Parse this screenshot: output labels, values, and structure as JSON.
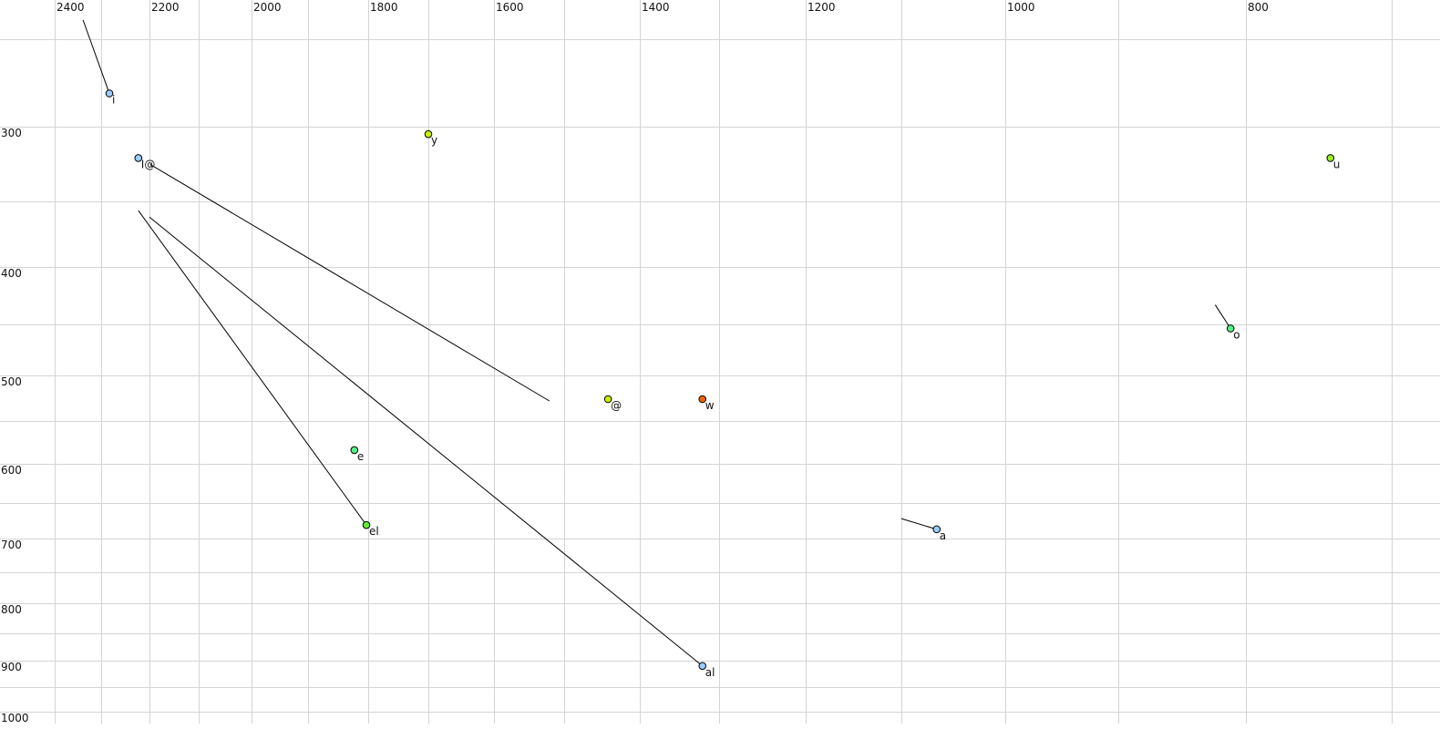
{
  "chart_data": {
    "type": "scatter",
    "title": "",
    "xlabel": "",
    "ylabel": "",
    "x_axis": {
      "reversed": true,
      "scale": "nonlinear (auditory/log-like)",
      "tick_labels": [
        "2400",
        "2200",
        "2000",
        "1800",
        "1600",
        "1400",
        "1200",
        "1000",
        "800"
      ],
      "grid_values": [
        2400,
        2300,
        2200,
        2100,
        2000,
        1900,
        1800,
        1700,
        1600,
        1500,
        1400,
        1300,
        1200,
        1100,
        1000,
        900,
        800,
        700
      ],
      "position": "top"
    },
    "y_axis": {
      "reversed": false,
      "tick_labels": [
        "300",
        "400",
        "500",
        "600",
        "700",
        "800",
        "900",
        "1000"
      ],
      "grid_values": [
        250,
        300,
        350,
        400,
        450,
        500,
        550,
        600,
        650,
        700,
        750,
        800,
        850,
        900,
        950,
        1000
      ],
      "position": "left"
    },
    "grid": true,
    "legend": "none",
    "points": [
      {
        "label": "i",
        "x": 2283,
        "y": 281,
        "color": "#99ccff",
        "from": {
          "x": 2339,
          "y": 239
        }
      },
      {
        "label": "I@",
        "x": 2223,
        "y": 321,
        "color": "#99ccff",
        "to": {
          "x": 1521,
          "y": 528
        }
      },
      {
        "label": "y",
        "x": 1700,
        "y": 305,
        "color": "#ccee00"
      },
      {
        "label": "u",
        "x": 742,
        "y": 321,
        "color": "#99ee22"
      },
      {
        "label": "o",
        "x": 812,
        "y": 454,
        "color": "#55ee88",
        "from": {
          "x": 824,
          "y": 433
        }
      },
      {
        "label": "@",
        "x": 1442,
        "y": 526,
        "color": "#ccee00"
      },
      {
        "label": "w",
        "x": 1321,
        "y": 526,
        "color": "#ee6600"
      },
      {
        "label": "e",
        "x": 1823,
        "y": 584,
        "color": "#55ee88"
      },
      {
        "label": "el",
        "x": 1803,
        "y": 681,
        "color": "#66ee33",
        "from": {
          "x": 2223,
          "y": 357
        }
      },
      {
        "label": "al",
        "x": 1321,
        "y": 910,
        "color": "#99ccff",
        "from": {
          "x": 2200,
          "y": 362
        }
      },
      {
        "label": "a",
        "x": 1066,
        "y": 687,
        "color": "#99ccff",
        "from": {
          "x": 1100,
          "y": 672
        }
      }
    ]
  }
}
